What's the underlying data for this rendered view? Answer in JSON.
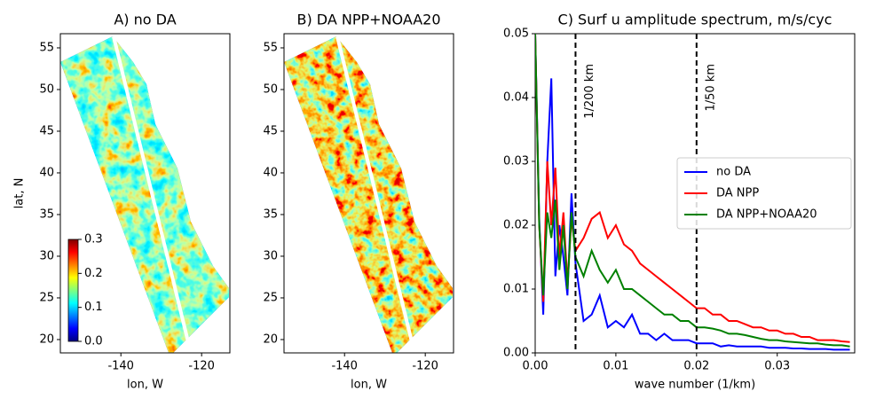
{
  "chart_data": [
    {
      "type": "map",
      "title": "A) no DA",
      "xlabel": "lon, W",
      "ylabel": "lat, N",
      "xlim": [
        -155,
        -113
      ],
      "ylim": [
        18.4,
        56.7
      ],
      "xticks": [
        -140,
        -120
      ],
      "yticks": [
        20,
        25,
        30,
        35,
        40,
        45,
        50,
        55
      ],
      "colorbar": {
        "lim": [
          0,
          0.3
        ],
        "ticks": [
          {
            "value": 0,
            "label": "0.0"
          },
          0.1,
          0.2,
          0.3
        ]
      }
    },
    {
      "type": "map",
      "title": "B) DA NPP+NOAA20",
      "xlabel": "lon, W",
      "xlim": [
        -155,
        -113
      ],
      "ylim": [
        18.4,
        56.7
      ],
      "xticks": [
        -140,
        -120
      ],
      "yticks": [
        20,
        25,
        30,
        35,
        40,
        45,
        50,
        55
      ]
    },
    {
      "type": "line",
      "title": "C) Surf u amplitude spectrum, m/s/cyc",
      "xlabel": "wave number (1/km)",
      "xlim": [
        0,
        0.0396
      ],
      "ylim": [
        0,
        0.05
      ],
      "xticks": [
        {
          "value": 0,
          "label": "0.00"
        },
        0.01,
        0.02,
        0.03
      ],
      "yticks": [
        {
          "value": 0,
          "label": "0.00"
        },
        0.01,
        0.02,
        0.03,
        0.04,
        0.05
      ],
      "legend": "center right",
      "vlines": [
        {
          "x": 0.005,
          "label": "1/200 km"
        },
        {
          "x": 0.02,
          "label": "1/50 km"
        }
      ],
      "x": [
        0,
        0.0005,
        0.001,
        0.0015,
        0.002,
        0.0025,
        0.003,
        0.0035,
        0.004,
        0.0045,
        0.005,
        0.006,
        0.007,
        0.008,
        0.009,
        0.01,
        0.011,
        0.012,
        0.013,
        0.014,
        0.015,
        0.016,
        0.017,
        0.018,
        0.019,
        0.02,
        0.021,
        0.022,
        0.023,
        0.024,
        0.025,
        0.026,
        0.027,
        0.028,
        0.029,
        0.03,
        0.031,
        0.032,
        0.033,
        0.034,
        0.035,
        0.036,
        0.037,
        0.038,
        0.039
      ],
      "series": [
        {
          "name": "no DA",
          "color": "#0000ff",
          "values": [
            0.05,
            0.021,
            0.006,
            0.03,
            0.043,
            0.012,
            0.02,
            0.015,
            0.009,
            0.025,
            0.014,
            0.005,
            0.006,
            0.009,
            0.004,
            0.005,
            0.004,
            0.006,
            0.003,
            0.003,
            0.002,
            0.003,
            0.002,
            0.002,
            0.002,
            0.0015,
            0.0015,
            0.0015,
            0.001,
            0.0012,
            0.001,
            0.001,
            0.001,
            0.001,
            0.0008,
            0.0008,
            0.0008,
            0.0007,
            0.0007,
            0.0006,
            0.0006,
            0.0006,
            0.0005,
            0.0005,
            0.0005
          ]
        },
        {
          "name": "DA NPP",
          "color": "#ff0000",
          "values": [
            0.05,
            0.02,
            0.008,
            0.03,
            0.02,
            0.029,
            0.015,
            0.022,
            0.011,
            0.021,
            0.016,
            0.018,
            0.021,
            0.022,
            0.018,
            0.02,
            0.017,
            0.016,
            0.014,
            0.013,
            0.012,
            0.011,
            0.01,
            0.009,
            0.008,
            0.007,
            0.007,
            0.006,
            0.006,
            0.005,
            0.005,
            0.0045,
            0.004,
            0.004,
            0.0035,
            0.0035,
            0.003,
            0.003,
            0.0025,
            0.0025,
            0.002,
            0.002,
            0.002,
            0.0018,
            0.0017
          ]
        },
        {
          "name": "DA NPP+NOAA20",
          "color": "#008000",
          "values": [
            0.05,
            0.02,
            0.009,
            0.022,
            0.018,
            0.024,
            0.013,
            0.02,
            0.01,
            0.022,
            0.015,
            0.012,
            0.016,
            0.013,
            0.011,
            0.013,
            0.01,
            0.01,
            0.009,
            0.008,
            0.007,
            0.006,
            0.006,
            0.005,
            0.005,
            0.004,
            0.004,
            0.0038,
            0.0035,
            0.003,
            0.003,
            0.0028,
            0.0025,
            0.0022,
            0.002,
            0.002,
            0.0018,
            0.0017,
            0.0016,
            0.0015,
            0.0015,
            0.0013,
            0.0012,
            0.0012,
            0.001
          ]
        }
      ]
    }
  ]
}
